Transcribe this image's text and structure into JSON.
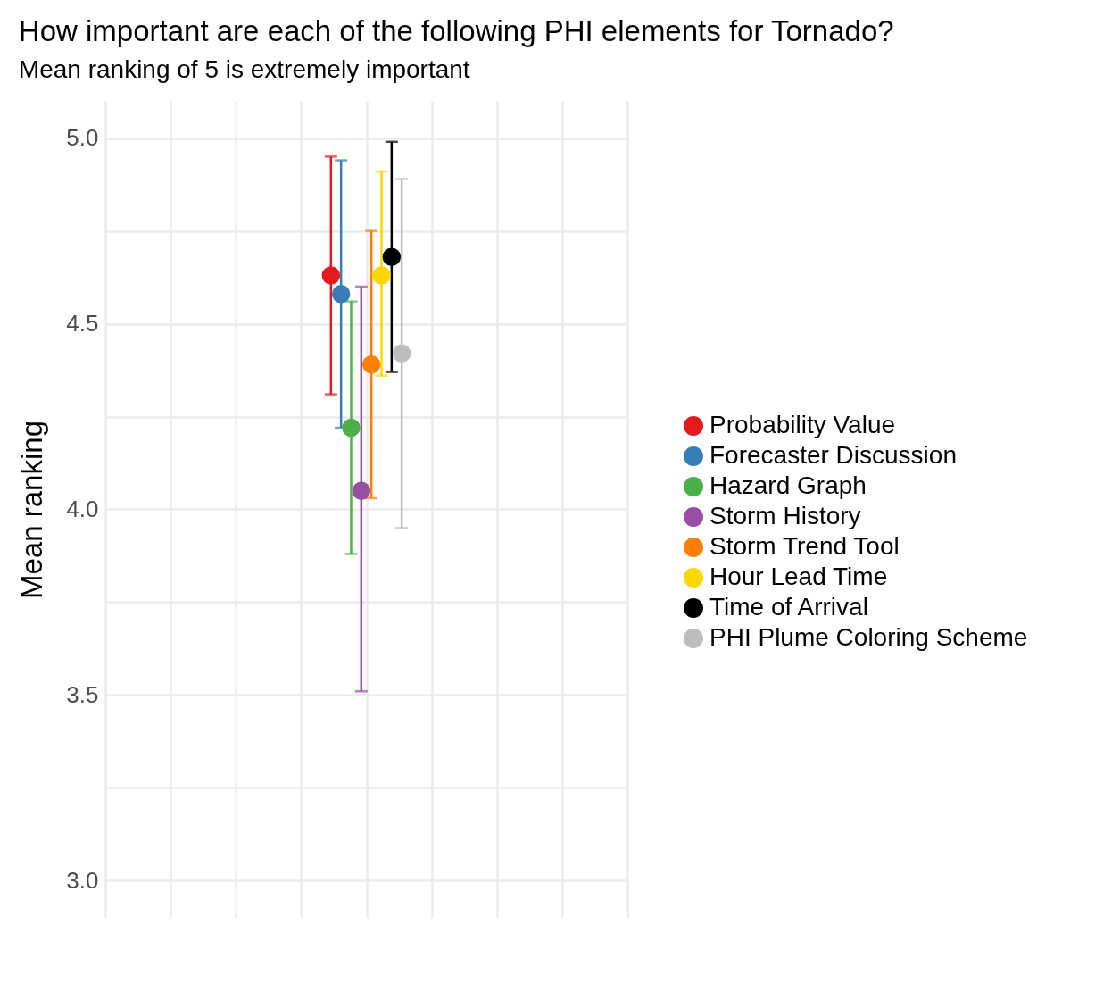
{
  "chart_data": {
    "type": "scatter",
    "title": "How important are each of the following PHI elements for Tornado?",
    "subtitle": "Mean ranking of 5 is extremely important",
    "ylabel": "Mean ranking",
    "categories": [
      null
    ],
    "series": [
      {
        "name": "Probability Value",
        "color": "#e41a1c",
        "values": [
          4.63
        ],
        "errors": [
          [
            4.31,
            4.95
          ]
        ]
      },
      {
        "name": "Forecaster Discussion",
        "color": "#377eb8",
        "values": [
          4.58
        ],
        "errors": [
          [
            4.22,
            4.94
          ]
        ]
      },
      {
        "name": "Hazard Graph",
        "color": "#4daf4a",
        "values": [
          4.22
        ],
        "errors": [
          [
            3.88,
            4.56
          ]
        ]
      },
      {
        "name": "Storm History",
        "color": "#984ea3",
        "values": [
          4.05
        ],
        "errors": [
          [
            3.51,
            4.6
          ]
        ]
      },
      {
        "name": "Storm Trend Tool",
        "color": "#ff7f00",
        "values": [
          4.39
        ],
        "errors": [
          [
            4.03,
            4.75
          ]
        ]
      },
      {
        "name": "Hour Lead Time",
        "color": "#ffd700",
        "values": [
          4.63
        ],
        "errors": [
          [
            4.36,
            4.91
          ]
        ]
      },
      {
        "name": "Time of Arrival",
        "color": "#000000",
        "values": [
          4.68
        ],
        "errors": [
          [
            4.37,
            4.99
          ]
        ]
      },
      {
        "name": "PHI Plume Coloring Scheme",
        "color": "#bdbdbd",
        "values": [
          4.42
        ],
        "errors": [
          [
            3.95,
            4.89
          ]
        ]
      }
    ],
    "ylim": [
      2.9,
      5.1
    ],
    "yticks": [
      {
        "value": 3,
        "label": "3.0"
      },
      {
        "value": 3.25,
        "label": null
      },
      {
        "value": 3.5,
        "label": "3.5"
      },
      {
        "value": 3.75,
        "label": null
      },
      {
        "value": 4,
        "label": "4.0"
      },
      {
        "value": 4.25,
        "label": null
      },
      {
        "value": 4.5,
        "label": "4.5"
      },
      {
        "value": 4.75,
        "label": null
      },
      {
        "value": 5,
        "label": "5.0"
      }
    ],
    "grid": true,
    "legend": "right",
    "marker": "circle",
    "tick_labels": "y"
  }
}
